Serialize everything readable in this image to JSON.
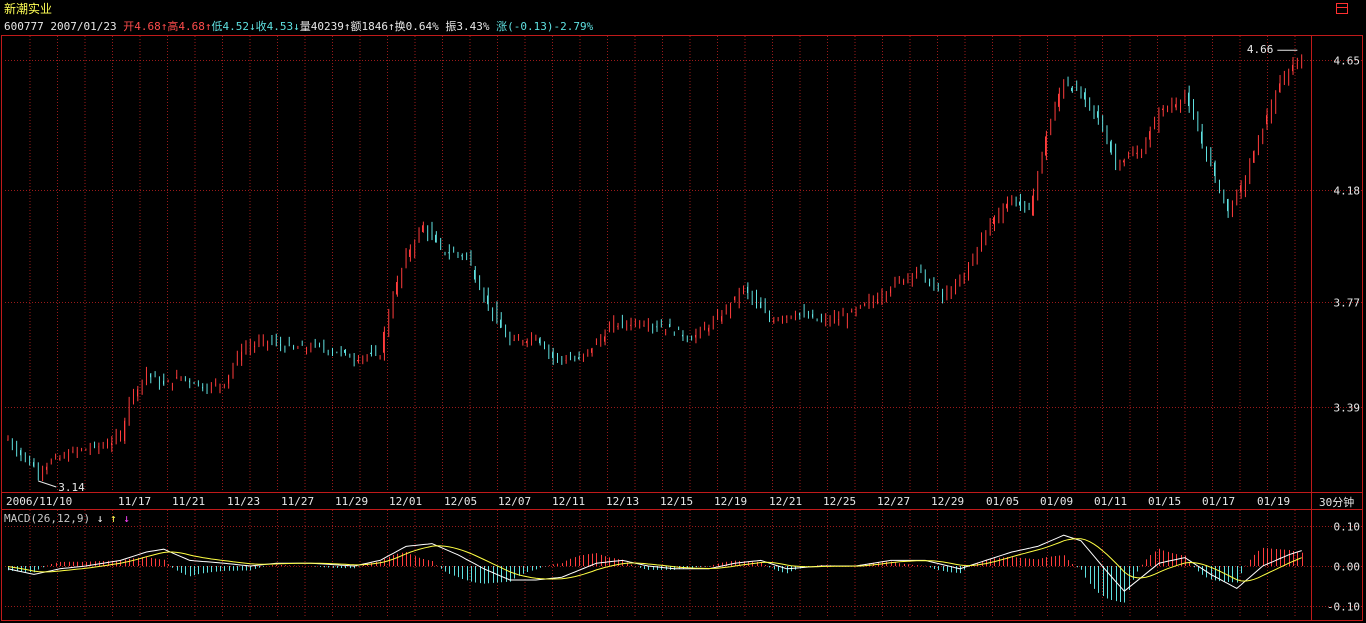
{
  "header": {
    "stock_name": "新潮实业",
    "code": "600777",
    "date": "2007/01/23",
    "open_label": "开",
    "open_value": "4.68",
    "open_arrow": "↑",
    "high_label": "高",
    "high_value": "4.68",
    "high_arrow": "↑",
    "low_label": "低",
    "low_value": "4.52",
    "low_arrow": "↓",
    "close_label": "收",
    "close_value": "4.53",
    "close_arrow": "↓",
    "volume_label": "量",
    "volume_value": "40239",
    "volume_arrow": "↑",
    "amount_label": "额",
    "amount_value": "1846",
    "amount_arrow": "↑",
    "turnover_label": "换",
    "turnover_value": "0.64%",
    "amplitude_label": "振",
    "amplitude_value": "3.43%",
    "change_label": "涨",
    "change_value": "(-0.13)-2.79%"
  },
  "period_label": "30分钟",
  "macd": {
    "label": "MACD(26,12,9)",
    "arrows": [
      "↓",
      "↑",
      "↓"
    ],
    "arrow_colors": [
      "#ffffff",
      "#ffff55",
      "#ff44ff"
    ]
  },
  "colors": {
    "up": "#ff3c3c",
    "down": "#5fe0e0",
    "grid": "#9a1a1a",
    "frame": "#c01a1a",
    "dif_line": "#ffffff",
    "dea_line": "#ffff44"
  },
  "chart_data": {
    "type": "candlestick",
    "y_ticks": [
      3.39,
      3.77,
      4.18,
      4.65
    ],
    "ylim": [
      3.08,
      4.71
    ],
    "x_tick_labels": [
      "2006/11/10",
      "11/17",
      "11/21",
      "11/23",
      "11/27",
      "11/29",
      "12/01",
      "12/05",
      "12/07",
      "12/11",
      "12/13",
      "12/15",
      "12/19",
      "12/21",
      "12/25",
      "12/27",
      "12/29",
      "01/05",
      "01/09",
      "01/11",
      "01/15",
      "01/17",
      "01/19"
    ],
    "min_label": "3.14",
    "max_label": "4.66",
    "anchors": [
      [
        0,
        3.27
      ],
      [
        4,
        3.2
      ],
      [
        7,
        3.16
      ],
      [
        10,
        3.19
      ],
      [
        16,
        3.23
      ],
      [
        22,
        3.25
      ],
      [
        26,
        3.28
      ],
      [
        28,
        3.42
      ],
      [
        32,
        3.51
      ],
      [
        36,
        3.47
      ],
      [
        40,
        3.5
      ],
      [
        46,
        3.46
      ],
      [
        50,
        3.48
      ],
      [
        54,
        3.6
      ],
      [
        60,
        3.63
      ],
      [
        66,
        3.6
      ],
      [
        72,
        3.61
      ],
      [
        80,
        3.57
      ],
      [
        86,
        3.58
      ],
      [
        88,
        3.74
      ],
      [
        92,
        3.94
      ],
      [
        96,
        4.05
      ],
      [
        100,
        3.96
      ],
      [
        106,
        3.94
      ],
      [
        110,
        3.79
      ],
      [
        116,
        3.62
      ],
      [
        122,
        3.65
      ],
      [
        126,
        3.57
      ],
      [
        132,
        3.56
      ],
      [
        140,
        3.69
      ],
      [
        146,
        3.7
      ],
      [
        152,
        3.68
      ],
      [
        158,
        3.64
      ],
      [
        164,
        3.71
      ],
      [
        170,
        3.82
      ],
      [
        176,
        3.71
      ],
      [
        182,
        3.73
      ],
      [
        188,
        3.7
      ],
      [
        194,
        3.72
      ],
      [
        200,
        3.78
      ],
      [
        206,
        3.85
      ],
      [
        210,
        3.89
      ],
      [
        216,
        3.79
      ],
      [
        220,
        3.84
      ],
      [
        224,
        3.97
      ],
      [
        228,
        4.08
      ],
      [
        232,
        4.15
      ],
      [
        236,
        4.1
      ],
      [
        240,
        4.38
      ],
      [
        244,
        4.58
      ],
      [
        248,
        4.52
      ],
      [
        252,
        4.44
      ],
      [
        256,
        4.28
      ],
      [
        262,
        4.32
      ],
      [
        266,
        4.46
      ],
      [
        272,
        4.52
      ],
      [
        276,
        4.35
      ],
      [
        280,
        4.18
      ],
      [
        282,
        4.1
      ],
      [
        286,
        4.22
      ],
      [
        290,
        4.41
      ],
      [
        294,
        4.56
      ],
      [
        298,
        4.66
      ]
    ],
    "macd_ticks": [
      0.1,
      0.0,
      -0.1
    ],
    "macd_ylim": [
      -0.13,
      0.14
    ],
    "macd_anchors": [
      [
        0,
        -0.01
      ],
      [
        6,
        -0.03
      ],
      [
        12,
        -0.01
      ],
      [
        18,
        0.0
      ],
      [
        26,
        0.02
      ],
      [
        32,
        0.05
      ],
      [
        36,
        0.06
      ],
      [
        42,
        0.02
      ],
      [
        50,
        0.01
      ],
      [
        56,
        0.0
      ],
      [
        62,
        0.01
      ],
      [
        70,
        0.01
      ],
      [
        80,
        0.0
      ],
      [
        86,
        0.02
      ],
      [
        92,
        0.07
      ],
      [
        98,
        0.08
      ],
      [
        104,
        0.04
      ],
      [
        110,
        -0.01
      ],
      [
        116,
        -0.05
      ],
      [
        122,
        -0.05
      ],
      [
        128,
        -0.04
      ],
      [
        136,
        0.01
      ],
      [
        142,
        0.02
      ],
      [
        148,
        0.0
      ],
      [
        154,
        -0.01
      ],
      [
        162,
        -0.01
      ],
      [
        168,
        0.01
      ],
      [
        174,
        0.02
      ],
      [
        180,
        -0.01
      ],
      [
        188,
        0.0
      ],
      [
        196,
        0.0
      ],
      [
        204,
        0.02
      ],
      [
        212,
        0.02
      ],
      [
        220,
        -0.01
      ],
      [
        226,
        0.02
      ],
      [
        232,
        0.05
      ],
      [
        238,
        0.07
      ],
      [
        244,
        0.11
      ],
      [
        248,
        0.09
      ],
      [
        254,
        -0.02
      ],
      [
        258,
        -0.09
      ],
      [
        262,
        -0.04
      ],
      [
        266,
        0.01
      ],
      [
        272,
        0.03
      ],
      [
        278,
        -0.03
      ],
      [
        284,
        -0.08
      ],
      [
        290,
        0.0
      ],
      [
        296,
        0.04
      ],
      [
        300,
        0.06
      ]
    ]
  }
}
